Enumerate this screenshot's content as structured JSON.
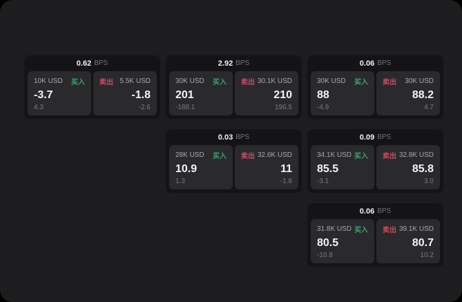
{
  "labels": {
    "bps_unit": "BPS",
    "buy": "买入",
    "sell": "卖出"
  },
  "colors": {
    "buy": "#3fa369",
    "sell": "#c44f63"
  },
  "cards": [
    {
      "bps": "0.62",
      "buy": {
        "amount": "10K USD",
        "price": "-3.7",
        "delta": "4.3"
      },
      "sell": {
        "amount": "5.5K USD",
        "price": "-1.8",
        "delta": "-2.6"
      }
    },
    {
      "bps": "2.92",
      "buy": {
        "amount": "30K USD",
        "price": "201",
        "delta": "-188.1"
      },
      "sell": {
        "amount": "30.1K USD",
        "price": "210",
        "delta": "196.5"
      }
    },
    {
      "bps": "0.06",
      "buy": {
        "amount": "30K USD",
        "price": "88",
        "delta": "-4.9"
      },
      "sell": {
        "amount": "30K USD",
        "price": "88.2",
        "delta": "4.7"
      }
    },
    {
      "bps": "0.03",
      "buy": {
        "amount": "28K USD",
        "price": "10.9",
        "delta": "1.3"
      },
      "sell": {
        "amount": "32.6K USD",
        "price": "11",
        "delta": "-1.8"
      }
    },
    {
      "bps": "0.09",
      "buy": {
        "amount": "34.1K USD",
        "price": "85.5",
        "delta": "-3.1"
      },
      "sell": {
        "amount": "32.8K USD",
        "price": "85.8",
        "delta": "3.0"
      }
    },
    {
      "bps": "0.06",
      "buy": {
        "amount": "31.8K USD",
        "price": "80.5",
        "delta": "-10.8"
      },
      "sell": {
        "amount": "39.1K USD",
        "price": "80.7",
        "delta": "10.2"
      }
    }
  ]
}
